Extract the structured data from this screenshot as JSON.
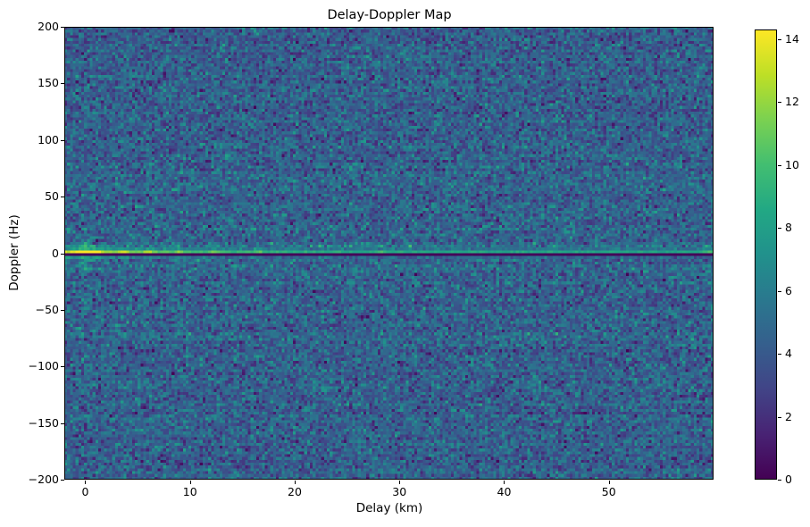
{
  "figure": {
    "title": "Delay-Doppler Map"
  },
  "chart_data": {
    "type": "heatmap",
    "title": "Delay-Doppler Map",
    "xlabel": "Delay (km)",
    "ylabel": "Doppler (Hz)",
    "xlim": [
      -2,
      60
    ],
    "ylim": [
      -200,
      200
    ],
    "xticks": [
      0,
      10,
      20,
      30,
      40,
      50
    ],
    "xtick_labels": [
      "0",
      "10",
      "20",
      "30",
      "40",
      "50"
    ],
    "yticks": [
      200,
      150,
      100,
      50,
      0,
      -50,
      -100,
      -150,
      -200
    ],
    "ytick_labels": [
      "200",
      "150",
      "100",
      "50",
      "0",
      "−50",
      "−100",
      "−150",
      "−200"
    ],
    "grid_on": false,
    "legend": null,
    "colorbar": {
      "colormap": "viridis",
      "vmin": 0,
      "vmax": 14.31,
      "ticks": [
        0,
        2,
        4,
        6,
        8,
        10,
        12,
        14
      ],
      "tick_labels": [
        "0",
        "2",
        "4",
        "6",
        "8",
        "10",
        "12",
        "14"
      ]
    },
    "grid_bins": {
      "nx": 230,
      "ny": 160
    },
    "noise": {
      "distribution": "gaussian-speckle",
      "mean": 4.55,
      "std": 1.4
    },
    "signal": {
      "description": "Bright zero-Doppler ridge across all delays, brightest (saturated yellow) at 0 km delay and decaying with delay; thin dark notch row just below 0 Hz; vertical Doppler smear at 0 km; secondary bright spots along the ridge",
      "ridge_doppler_hz": 1.25,
      "notch_doppler_hz": -1.25,
      "peak_value": 14.3,
      "peak_delay_km": 0,
      "spike_delays_km": [
        1.2,
        3.7,
        6.1,
        8.9,
        12.3,
        16.5,
        28.4,
        59.5
      ],
      "spike_amps": [
        2.6,
        2.2,
        2.4,
        2.0,
        2.3,
        1.6,
        1.4,
        1.8
      ]
    },
    "colormap_stops": [
      [
        68,
        1,
        84
      ],
      [
        72,
        35,
        116
      ],
      [
        65,
        68,
        135
      ],
      [
        53,
        95,
        141
      ],
      [
        42,
        120,
        142
      ],
      [
        33,
        145,
        140
      ],
      [
        34,
        168,
        132
      ],
      [
        66,
        190,
        113
      ],
      [
        122,
        209,
        81
      ],
      [
        189,
        223,
        38
      ],
      [
        253,
        231,
        37
      ]
    ],
    "accent_colors": {
      "axes": "#000000",
      "background": "#ffffff"
    }
  }
}
